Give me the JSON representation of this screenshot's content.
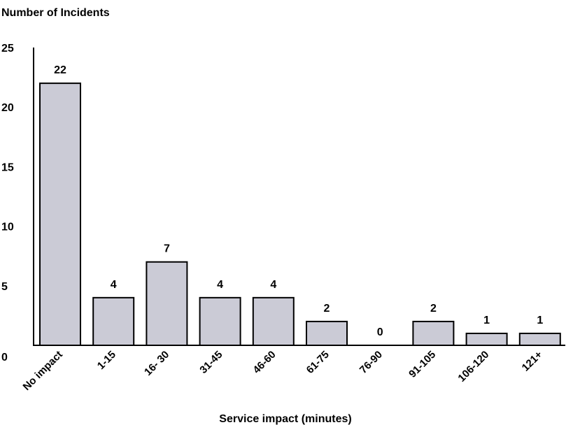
{
  "chart_data": {
    "type": "bar",
    "ylabel": "Number of Incidents",
    "xlabel": "Service impact (minutes)",
    "ylim": [
      0,
      25
    ],
    "yticks": [
      0,
      5,
      10,
      15,
      20,
      25
    ],
    "grid": false,
    "categories": [
      "No impact",
      "1-15",
      "16- 30",
      "31-45",
      "46-60",
      "61-75",
      "76-90",
      "91-105",
      "106-120",
      "121+"
    ],
    "values": [
      22,
      4,
      7,
      4,
      4,
      2,
      0,
      2,
      1,
      1
    ],
    "data_labels": [
      "22",
      "4",
      "7",
      "4",
      "4",
      "2",
      "0",
      "2",
      "1",
      "1"
    ],
    "colors": {
      "bar_fill": "#cbcbd6",
      "bar_stroke": "#000000",
      "axis": "#000000",
      "text": "#000000"
    }
  }
}
